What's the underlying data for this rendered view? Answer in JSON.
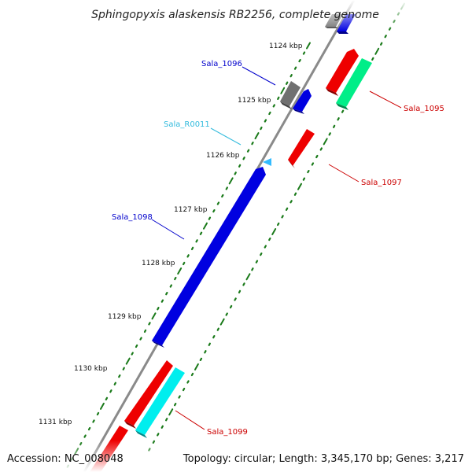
{
  "title": "Sphingopyxis alaskensis RB2256, complete genome",
  "accession": "Accession: NC_008048",
  "topology": "Topology: circular; Length: 3,345,170 bp; Genes: 3,217",
  "colors": {
    "backbone": "#8c8c8c",
    "tick": "#1a7a1a",
    "blue": "#0000e0",
    "red": "#ee0000",
    "gray": "#707070",
    "cyan": "#00eeee",
    "teal": "#00ee88",
    "lightblue": "#33bbff",
    "label_blue": "#0000cc",
    "label_red": "#cc0000",
    "label_cyan": "#33bbdd"
  },
  "kbp_labels": [
    "1124 kbp",
    "1125 kbp",
    "1126 kbp",
    "1127 kbp",
    "1128 kbp",
    "1129 kbp",
    "1130 kbp",
    "1131 kbp"
  ],
  "gene_labels": [
    {
      "text": "Sala_1096",
      "color": "label_blue"
    },
    {
      "text": "Sala_R0011",
      "color": "label_cyan"
    },
    {
      "text": "Sala_1098",
      "color": "label_blue"
    },
    {
      "text": "Sala_1095",
      "color": "label_red"
    },
    {
      "text": "Sala_1097",
      "color": "label_red"
    },
    {
      "text": "Sala_1099",
      "color": "label_red"
    }
  ]
}
